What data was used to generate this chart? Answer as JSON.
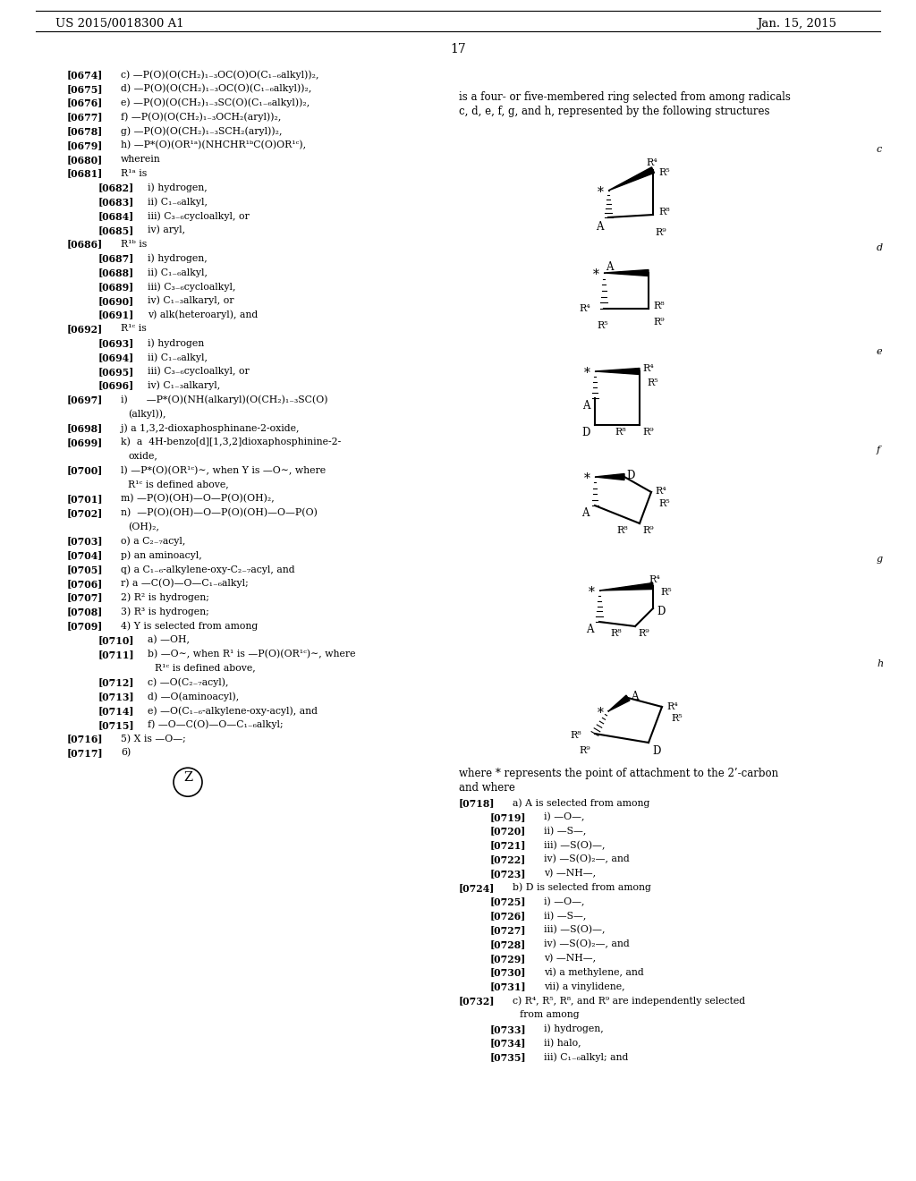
{
  "patent_number": "US 2015/0018300 A1",
  "date": "Jan. 15, 2015",
  "page_number": "17",
  "bg": "#ffffff"
}
